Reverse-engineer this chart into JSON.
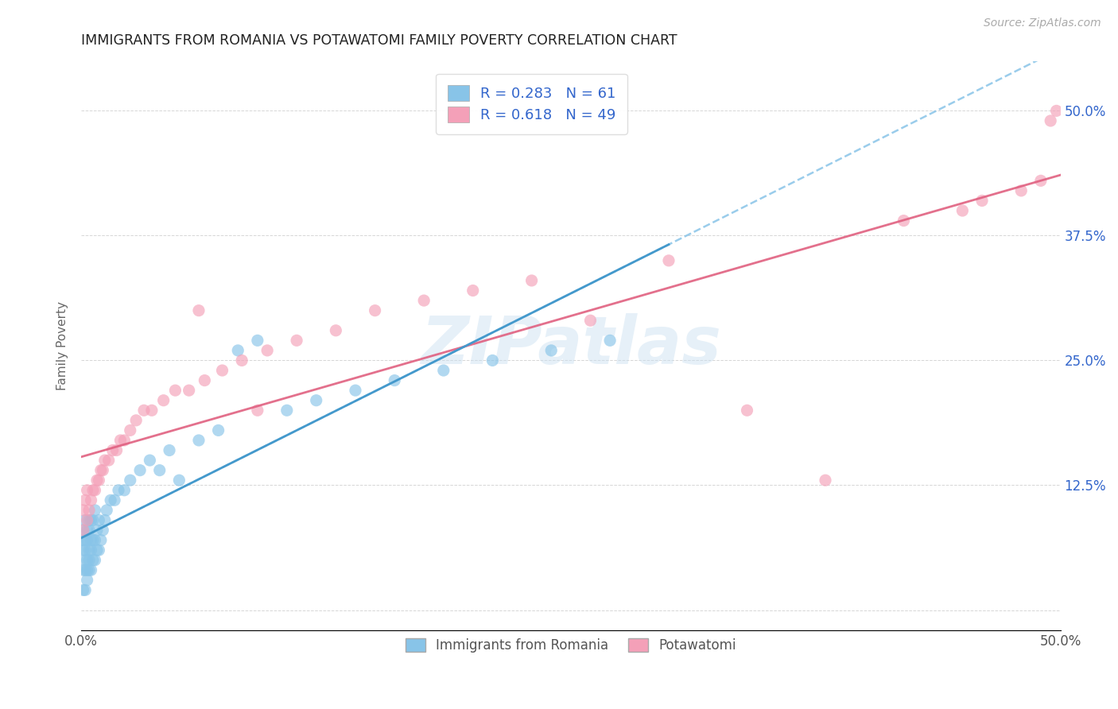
{
  "title": "IMMIGRANTS FROM ROMANIA VS POTAWATOMI FAMILY POVERTY CORRELATION CHART",
  "source": "Source: ZipAtlas.com",
  "ylabel": "Family Poverty",
  "legend_label1": "Immigrants from Romania",
  "legend_label2": "Potawatomi",
  "r1": 0.283,
  "n1": 61,
  "r2": 0.618,
  "n2": 49,
  "xlim": [
    0.0,
    0.5
  ],
  "ylim": [
    -0.02,
    0.55
  ],
  "yticks": [
    0.0,
    0.125,
    0.25,
    0.375,
    0.5
  ],
  "ytick_labels": [
    "",
    "12.5%",
    "25.0%",
    "37.5%",
    "50.0%"
  ],
  "color_blue": "#88c4e8",
  "color_pink": "#f4a0b8",
  "watermark": "ZIPatlas",
  "romania_x": [
    0.001,
    0.001,
    0.001,
    0.001,
    0.001,
    0.002,
    0.002,
    0.002,
    0.002,
    0.002,
    0.002,
    0.003,
    0.003,
    0.003,
    0.003,
    0.003,
    0.004,
    0.004,
    0.004,
    0.004,
    0.004,
    0.005,
    0.005,
    0.005,
    0.005,
    0.006,
    0.006,
    0.006,
    0.007,
    0.007,
    0.007,
    0.008,
    0.008,
    0.009,
    0.009,
    0.01,
    0.011,
    0.012,
    0.013,
    0.015,
    0.017,
    0.019,
    0.022,
    0.025,
    0.03,
    0.035,
    0.04,
    0.045,
    0.05,
    0.06,
    0.07,
    0.08,
    0.09,
    0.105,
    0.12,
    0.14,
    0.16,
    0.185,
    0.21,
    0.24,
    0.27
  ],
  "romania_y": [
    0.02,
    0.04,
    0.06,
    0.07,
    0.08,
    0.02,
    0.04,
    0.05,
    0.06,
    0.07,
    0.09,
    0.03,
    0.04,
    0.05,
    0.07,
    0.08,
    0.04,
    0.05,
    0.06,
    0.08,
    0.09,
    0.04,
    0.06,
    0.07,
    0.09,
    0.05,
    0.07,
    0.09,
    0.05,
    0.07,
    0.1,
    0.06,
    0.08,
    0.06,
    0.09,
    0.07,
    0.08,
    0.09,
    0.1,
    0.11,
    0.11,
    0.12,
    0.12,
    0.13,
    0.14,
    0.15,
    0.14,
    0.16,
    0.13,
    0.17,
    0.18,
    0.26,
    0.27,
    0.2,
    0.21,
    0.22,
    0.23,
    0.24,
    0.25,
    0.26,
    0.27
  ],
  "potawatomi_x": [
    0.001,
    0.001,
    0.002,
    0.003,
    0.003,
    0.004,
    0.005,
    0.006,
    0.007,
    0.008,
    0.009,
    0.01,
    0.011,
    0.012,
    0.014,
    0.016,
    0.018,
    0.02,
    0.022,
    0.025,
    0.028,
    0.032,
    0.036,
    0.042,
    0.048,
    0.055,
    0.063,
    0.072,
    0.082,
    0.095,
    0.11,
    0.13,
    0.15,
    0.175,
    0.2,
    0.23,
    0.26,
    0.3,
    0.34,
    0.38,
    0.42,
    0.45,
    0.46,
    0.48,
    0.49,
    0.495,
    0.498,
    0.06,
    0.09
  ],
  "potawatomi_y": [
    0.08,
    0.1,
    0.11,
    0.09,
    0.12,
    0.1,
    0.11,
    0.12,
    0.12,
    0.13,
    0.13,
    0.14,
    0.14,
    0.15,
    0.15,
    0.16,
    0.16,
    0.17,
    0.17,
    0.18,
    0.19,
    0.2,
    0.2,
    0.21,
    0.22,
    0.22,
    0.23,
    0.24,
    0.25,
    0.26,
    0.27,
    0.28,
    0.3,
    0.31,
    0.32,
    0.33,
    0.29,
    0.35,
    0.2,
    0.13,
    0.39,
    0.4,
    0.41,
    0.42,
    0.43,
    0.49,
    0.5,
    0.3,
    0.2
  ]
}
